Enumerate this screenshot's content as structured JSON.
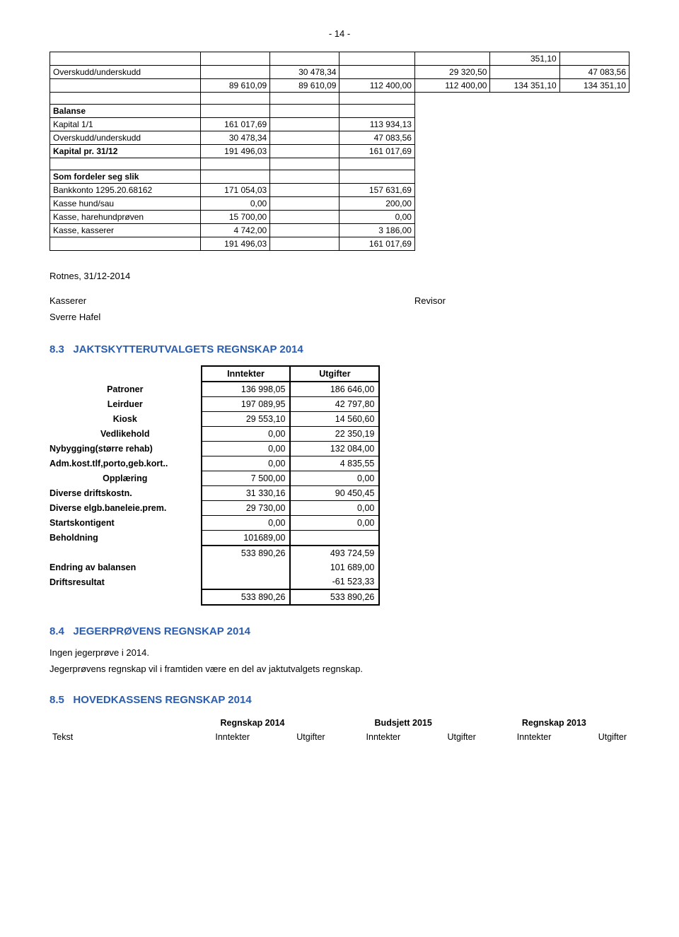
{
  "page_number": "- 14 -",
  "balance_table": {
    "r1": {
      "c6": "351,10"
    },
    "r2": {
      "c1": "Overskudd/underskudd",
      "c3": "30 478,34",
      "c5": "29 320,50",
      "c7": "47 083,56"
    },
    "r3": {
      "c2": "89 610,09",
      "c3": "89 610,09",
      "c4": "112 400,00",
      "c5": "112 400,00",
      "c6": "134 351,10",
      "c7": "134 351,10"
    },
    "r5": {
      "c1": "Balanse"
    },
    "r6": {
      "c1": "Kapital 1/1",
      "c2": "161 017,69",
      "c4": "113 934,13"
    },
    "r7": {
      "c1": "Overskudd/underskudd",
      "c2": "30 478,34",
      "c4": "47 083,56"
    },
    "r8": {
      "c1": "Kapital pr. 31/12",
      "c2": "191 496,03",
      "c4": "161 017,69"
    },
    "r10": {
      "c1": "Som fordeler seg slik"
    },
    "r11": {
      "c1": "Bankkonto 1295.20.68162",
      "c2": "171 054,03",
      "c4": "157 631,69"
    },
    "r12": {
      "c1": "Kasse hund/sau",
      "c2": "0,00",
      "c4": "200,00"
    },
    "r13": {
      "c1": "Kasse, harehundprøven",
      "c2": "15 700,00",
      "c4": "0,00"
    },
    "r14": {
      "c1": "Kasse, kasserer",
      "c2": "4 742,00",
      "c4": "3 186,00"
    },
    "r15": {
      "c2": "191 496,03",
      "c4": "161 017,69"
    }
  },
  "rotnes": "Rotnes, 31/12-2014",
  "kasserer": "Kasserer",
  "revisor": "Revisor",
  "sverre": "Sverre Hafel",
  "sec83": {
    "num": "8.3",
    "title": "JAKTSKYTTERUTVALGETS REGNSKAP 2014"
  },
  "t2": {
    "h1": "Inntekter",
    "h2": "Utgifter",
    "rows": [
      {
        "label": "Patroner",
        "a": "136 998,05",
        "b": "186 646,00",
        "cls": "lbl"
      },
      {
        "label": "Leirduer",
        "a": "197 089,95",
        "b": "42 797,80",
        "cls": "lbl"
      },
      {
        "label": "Kiosk",
        "a": "29 553,10",
        "b": "14 560,60",
        "cls": "lbl"
      },
      {
        "label": "Vedlikehold",
        "a": "0,00",
        "b": "22 350,19",
        "cls": "lbl"
      },
      {
        "label": "Nybygging(større rehab)",
        "a": "0,00",
        "b": "132 084,00",
        "cls": "lblL"
      },
      {
        "label": "Adm.kost.tlf,porto,geb.kort..",
        "a": "0,00",
        "b": "4 835,55",
        "cls": "lblL"
      },
      {
        "label": "Opplæring",
        "a": "7 500,00",
        "b": "0,00",
        "cls": "lbl"
      },
      {
        "label": "Diverse driftskostn.",
        "a": "31 330,16",
        "b": "90 450,45",
        "cls": "lblL"
      },
      {
        "label": "Diverse elgb.baneleie.prem.",
        "a": "29 730,00",
        "b": "0,00",
        "cls": "lblL"
      },
      {
        "label": "Startskontigent",
        "a": "0,00",
        "b": "0,00",
        "cls": "lblL"
      },
      {
        "label": "Beholdning",
        "a": "101689,00",
        "b": "",
        "cls": "lblL"
      }
    ],
    "sum1": {
      "a": "533 890,26",
      "b": "493 724,59"
    },
    "endring": {
      "label": "Endring av balansen",
      "b": "101 689,00"
    },
    "drift": {
      "label": "Driftsresultat",
      "b": "-61 523,33"
    },
    "total": {
      "a": "533 890,26",
      "b": "533 890,26"
    }
  },
  "sec84": {
    "num": "8.4",
    "title": "JEGERPRØVENS REGNSKAP 2014"
  },
  "p84a": "Ingen jegerprøve i 2014.",
  "p84b": "Jegerprøvens regnskap vil i framtiden være en del av jaktutvalgets regnskap.",
  "sec85": {
    "num": "8.5",
    "title": "HOVEDKASSENS REGNSKAP 2014"
  },
  "t3": {
    "h1": "Regnskap 2014",
    "h2": "Budsjett 2015",
    "h3": "Regnskap 2013",
    "tekst": "Tekst",
    "inn": "Inntekter",
    "ut": "Utgifter"
  }
}
